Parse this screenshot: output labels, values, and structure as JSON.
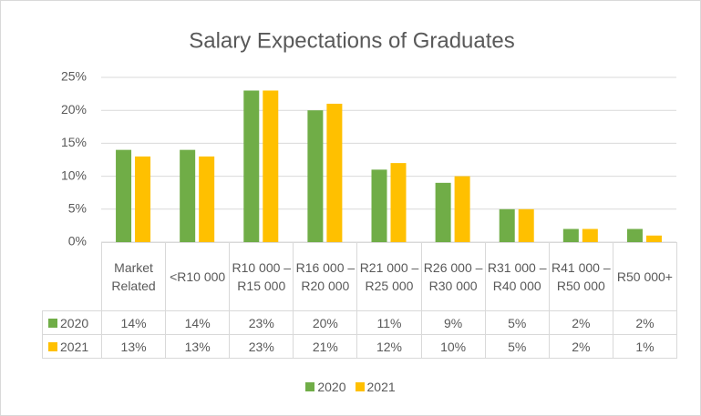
{
  "chart_data": {
    "type": "bar",
    "title": "Salary Expectations of Graduates",
    "categories": [
      "Market Related",
      "<R10 000",
      "R10 000 – R15 000",
      "R16 000 – R20 000",
      "R21 000 – R25 000",
      "R26 000 – R30 000",
      "R31 000 – R40 000",
      "R41 000 – R50 000",
      "R50 000+"
    ],
    "series": [
      {
        "name": "2020",
        "color": "#70ad47",
        "values": [
          14,
          14,
          23,
          20,
          11,
          9,
          5,
          2,
          2
        ],
        "value_labels": [
          "14%",
          "14%",
          "23%",
          "20%",
          "11%",
          "9%",
          "5%",
          "2%",
          "2%"
        ]
      },
      {
        "name": "2021",
        "color": "#ffc000",
        "values": [
          13,
          13,
          23,
          21,
          12,
          10,
          5,
          2,
          1
        ],
        "value_labels": [
          "13%",
          "13%",
          "23%",
          "21%",
          "12%",
          "10%",
          "5%",
          "2%",
          "1%"
        ]
      }
    ],
    "ylim": [
      0,
      25
    ],
    "yticks": [
      {
        "value": 0,
        "label": "0%"
      },
      {
        "value": 5,
        "label": "5%"
      },
      {
        "value": 10,
        "label": "10%"
      },
      {
        "value": 15,
        "label": "15%"
      },
      {
        "value": 20,
        "label": "20%"
      },
      {
        "value": 25,
        "label": "25%"
      }
    ],
    "grid": true,
    "legend": "bottom"
  }
}
